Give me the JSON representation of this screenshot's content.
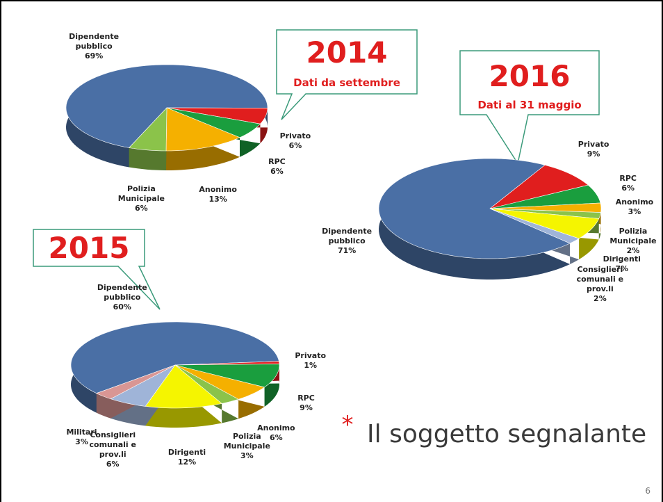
{
  "slide": {
    "title": "Il soggetto segnalante",
    "bullet": "*",
    "page_number": "6"
  },
  "callouts": [
    {
      "year": "2014",
      "note": "Dati da settembre"
    },
    {
      "year": "2015"
    },
    {
      "year": "2016",
      "note": "Dati al 31 maggio"
    }
  ],
  "chart_data": [
    {
      "type": "pie",
      "categories": [
        "Dipendente pubblico",
        "Privato",
        "RPC",
        "Anonimo",
        "Polizia Municipale"
      ],
      "values": [
        69,
        6,
        6,
        13,
        6
      ],
      "value_labels": [
        "69%",
        "6%",
        "6%",
        "13%",
        "6%"
      ],
      "colors": [
        "#4a6fa5",
        "#e01e1e",
        "#1a9e3e",
        "#f5b000",
        "#8bc34a"
      ]
    },
    {
      "type": "pie",
      "categories": [
        "Dipendente pubblico",
        "Privato",
        "RPC",
        "Anonimo",
        "Polizia Municipale",
        "Dirigenti",
        "Consiglieri comunali e prov.li",
        "Militari"
      ],
      "values": [
        60,
        1,
        9,
        6,
        3,
        12,
        6,
        3
      ],
      "value_labels": [
        "60%",
        "1%",
        "9%",
        "6%",
        "3%",
        "12%",
        "6%",
        "3%"
      ],
      "colors": [
        "#4a6fa5",
        "#e01e1e",
        "#1a9e3e",
        "#f5b000",
        "#8bc34a",
        "#f5f500",
        "#9fb4d8",
        "#d99694"
      ]
    },
    {
      "type": "pie",
      "categories": [
        "Dipendente pubblico",
        "Privato",
        "RPC",
        "Anonimo",
        "Polizia Municipale",
        "Dirigenti",
        "Consiglieri comunali e prov.li"
      ],
      "values": [
        71,
        9,
        6,
        3,
        2,
        7,
        2
      ],
      "value_labels": [
        "71%",
        "9%",
        "6%",
        "3%",
        "2%",
        "7%",
        "2%"
      ],
      "colors": [
        "#4a6fa5",
        "#e01e1e",
        "#1a9e3e",
        "#f5b000",
        "#8bc34a",
        "#f5f500",
        "#9fb4d8"
      ]
    }
  ]
}
